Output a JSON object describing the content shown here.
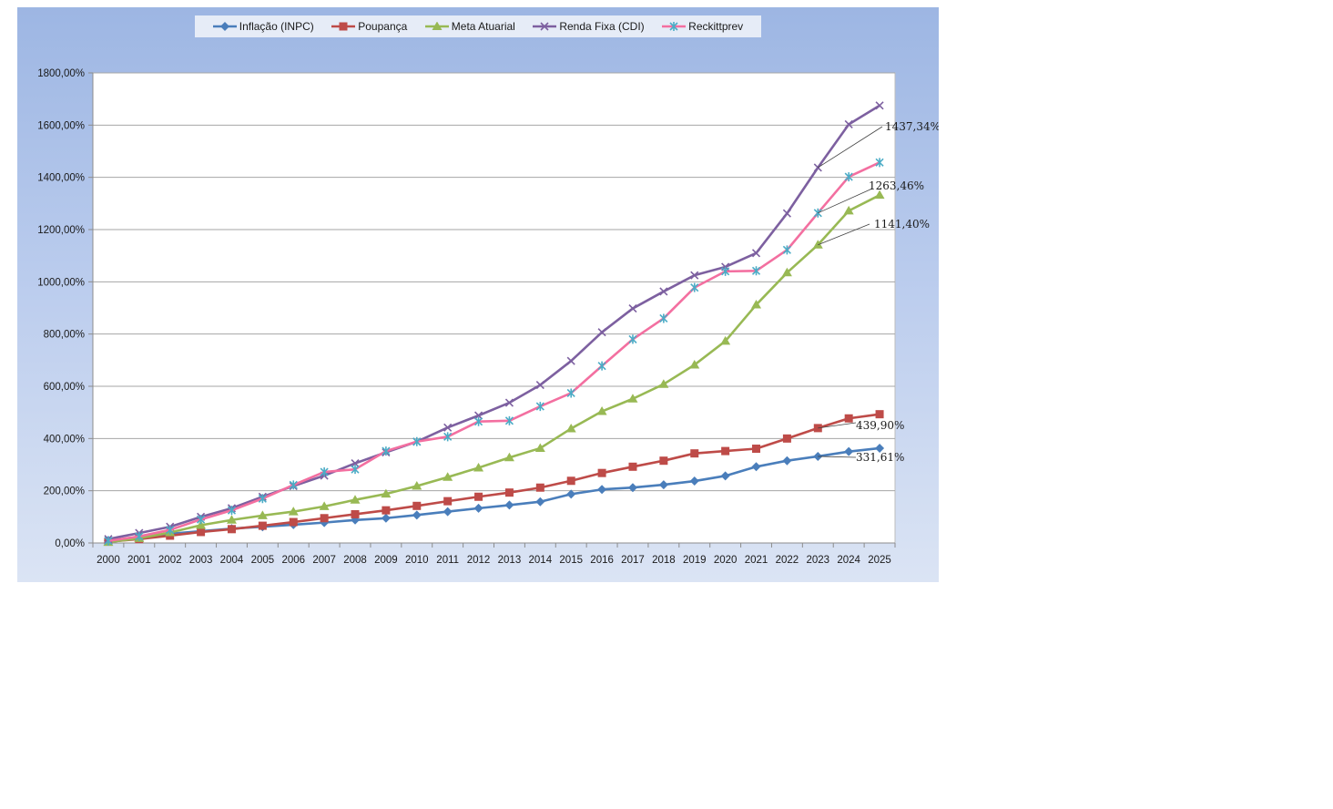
{
  "chart_data": {
    "type": "line",
    "title": "",
    "xlabel": "",
    "ylabel": "",
    "x": [
      "2000",
      "2001",
      "2002",
      "2003",
      "2004",
      "2005",
      "2006",
      "2007",
      "2008",
      "2009",
      "2010",
      "2011",
      "2012",
      "2013",
      "2014",
      "2015",
      "2016",
      "2017",
      "2018",
      "2019",
      "2020",
      "2021",
      "2022",
      "2023",
      "2024",
      "2025"
    ],
    "ylim": [
      0,
      1800
    ],
    "yticks": [
      0,
      200,
      400,
      600,
      800,
      1000,
      1200,
      1400,
      1600,
      1800
    ],
    "ytick_labels": [
      "0,00%",
      "200,00%",
      "400,00%",
      "600,00%",
      "800,00%",
      "1000,00%",
      "1200,00%",
      "1400,00%",
      "1600,00%",
      "1800,00%"
    ],
    "grid": true,
    "legend_position": "top",
    "series": [
      {
        "name": "Inflação (INPC)",
        "color": "#4a7ebb",
        "marker": "diamond",
        "values": [
          10,
          20,
          35,
          45,
          55,
          62,
          70,
          78,
          88,
          95,
          107,
          120,
          133,
          145,
          158,
          187,
          205,
          212,
          223,
          237,
          257,
          292,
          315,
          331.61,
          350,
          363
        ]
      },
      {
        "name": "Poupança",
        "color": "#be4b48",
        "marker": "square",
        "values": [
          5,
          15,
          28,
          42,
          53,
          66,
          80,
          95,
          110,
          125,
          142,
          160,
          177,
          193,
          212,
          238,
          268,
          292,
          315,
          343,
          352,
          361,
          400,
          439.9,
          477,
          493
        ]
      },
      {
        "name": "Meta Atuarial",
        "color": "#98b954",
        "marker": "triangle",
        "values": [
          3,
          18,
          40,
          68,
          88,
          105,
          120,
          140,
          165,
          188,
          218,
          252,
          288,
          327,
          363,
          438,
          504,
          552,
          608,
          682,
          773,
          912,
          1035,
          1141.4,
          1272,
          1332
        ]
      },
      {
        "name": "Renda Fixa (CDI)",
        "color": "#7d60a0",
        "marker": "x",
        "values": [
          15,
          38,
          62,
          100,
          133,
          177,
          218,
          258,
          305,
          347,
          388,
          442,
          488,
          537,
          605,
          697,
          807,
          898,
          963,
          1025,
          1057,
          1110,
          1262,
          1437.34,
          1603,
          1675
        ]
      },
      {
        "name": "Reckittprev",
        "color": "#f36fa0",
        "marker": "star",
        "marker_color": "#4bacc6",
        "values": [
          8,
          25,
          50,
          90,
          125,
          170,
          222,
          272,
          282,
          352,
          388,
          407,
          465,
          468,
          523,
          574,
          678,
          780,
          860,
          978,
          1040,
          1042,
          1122,
          1263.46,
          1402,
          1457
        ]
      }
    ],
    "annotations": [
      {
        "text": "1437,34%",
        "series": "Renda Fixa (CDI)",
        "x": "2023"
      },
      {
        "text": "1263,46%",
        "series": "Reckittprev",
        "x": "2023"
      },
      {
        "text": "1141,40%",
        "series": "Meta Atuarial",
        "x": "2023"
      },
      {
        "text": "439,90%",
        "series": "Poupança",
        "x": "2023"
      },
      {
        "text": "331,61%",
        "series": "Inflação (INPC)",
        "x": "2023"
      }
    ]
  }
}
